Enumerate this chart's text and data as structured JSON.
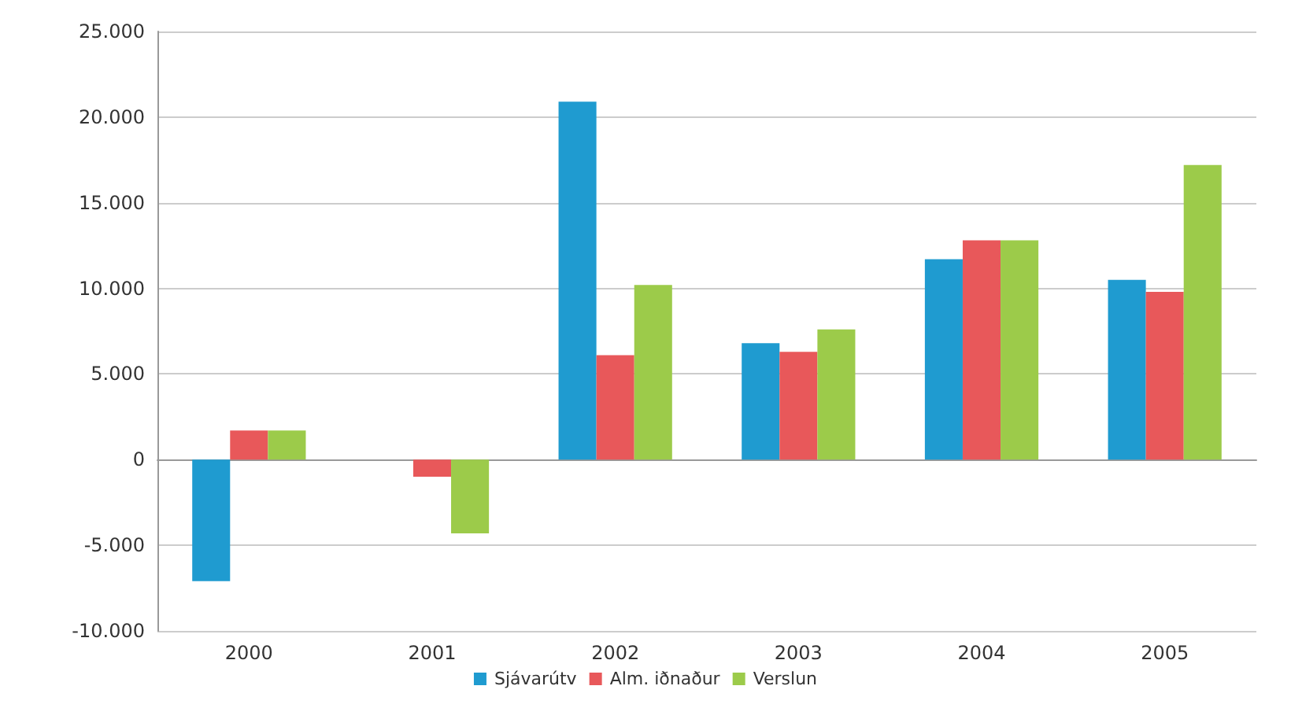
{
  "chart_data": {
    "type": "bar",
    "categories": [
      "2000",
      "2001",
      "2002",
      "2003",
      "2004",
      "2005"
    ],
    "series": [
      {
        "name": "Sjávarútv",
        "color": "#1f9bd0",
        "values": [
          -7100,
          0,
          20900,
          6800,
          11700,
          10500
        ]
      },
      {
        "name": "Alm. iðnaður",
        "color": "#e8585a",
        "values": [
          1700,
          -1000,
          6100,
          6300,
          12800,
          9800
        ]
      },
      {
        "name": "Verslun",
        "color": "#9ccb4a",
        "values": [
          1700,
          -4300,
          10200,
          7600,
          12800,
          17200
        ]
      }
    ],
    "ylim": [
      -10000,
      25000
    ],
    "yticks": [
      {
        "value": -10000,
        "label": "-10.000"
      },
      {
        "value": -5000,
        "label": "-5.000"
      },
      {
        "value": 0,
        "label": "0"
      },
      {
        "value": 5000,
        "label": "5.000"
      },
      {
        "value": 10000,
        "label": "10.000"
      },
      {
        "value": 15000,
        "label": "15.000"
      },
      {
        "value": 20000,
        "label": "20.000"
      },
      {
        "value": 25000,
        "label": "25.000"
      }
    ],
    "grid": "y",
    "legend": "bottom"
  }
}
